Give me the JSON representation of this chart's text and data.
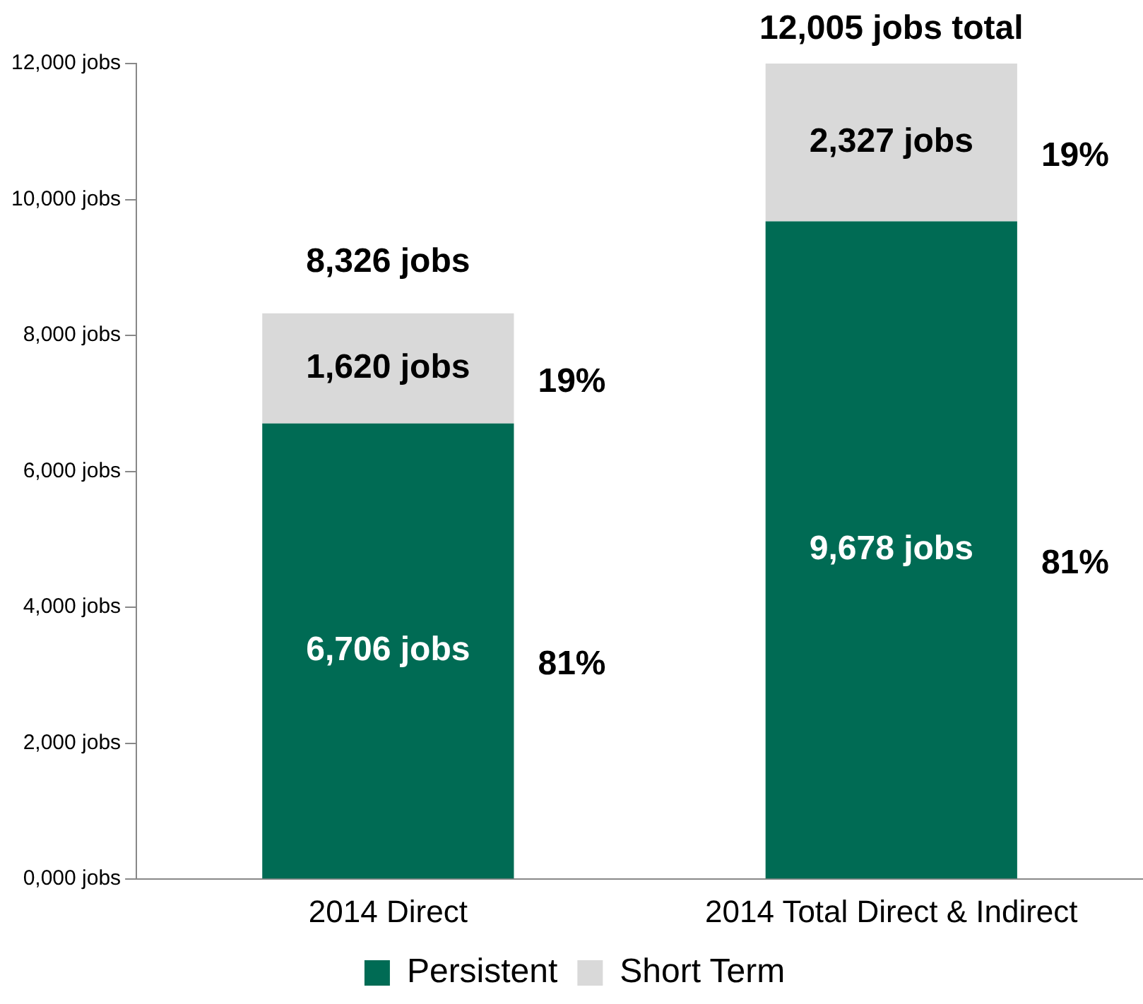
{
  "chart_data": {
    "type": "bar",
    "stacked": true,
    "categories": [
      "2014 Direct",
      "2014 Total Direct & Indirect"
    ],
    "series": [
      {
        "name": "Persistent",
        "color": "#006b54",
        "values": [
          6706,
          9678
        ],
        "value_labels": [
          "6,706 jobs",
          "9,678 jobs"
        ]
      },
      {
        "name": "Short Term",
        "color": "#d9d9d9",
        "values": [
          1620,
          2327
        ],
        "value_labels": [
          "1,620 jobs",
          "2,327 jobs"
        ]
      }
    ],
    "totals": [
      "8,326 jobs",
      "12,005 jobs total"
    ],
    "annotations": [
      "81%",
      "19%",
      "81%",
      "19%"
    ],
    "ylim": [
      0,
      12000
    ],
    "yticks": [
      {
        "value": 0,
        "label": "0,000 jobs"
      },
      {
        "value": 2000,
        "label": "2,000 jobs"
      },
      {
        "value": 4000,
        "label": "4,000 jobs"
      },
      {
        "value": 6000,
        "label": "6,000 jobs"
      },
      {
        "value": 8000,
        "label": "8,000 jobs"
      },
      {
        "value": 10000,
        "label": "10,000 jobs"
      },
      {
        "value": 12000,
        "label": "12,000 jobs"
      }
    ],
    "grid": false,
    "legend": "bottom"
  }
}
